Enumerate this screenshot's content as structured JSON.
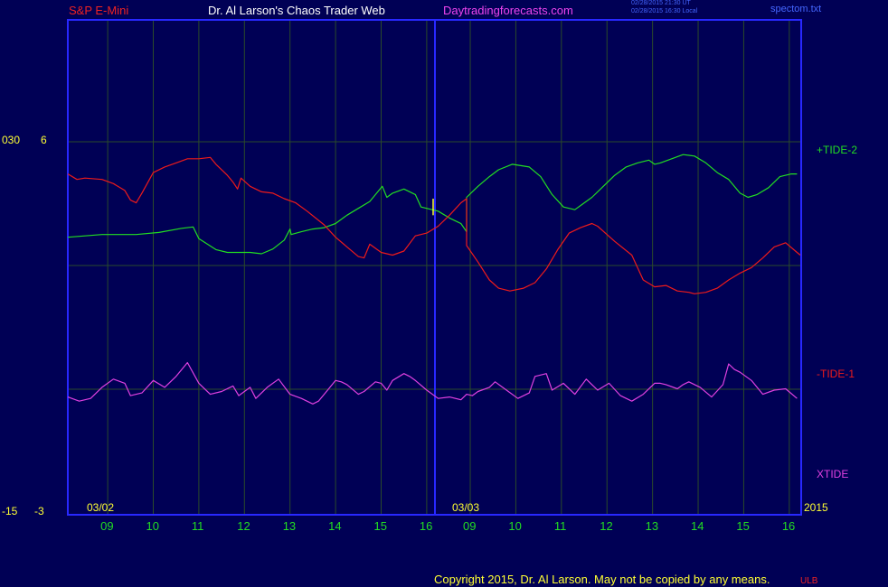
{
  "header": {
    "symbol": "S&P E-Mini",
    "author": "Dr. Al Larson's Chaos Trader Web",
    "site": "Daytradingforecasts.com",
    "timestamp1": "02/28/2015 21:30 UT",
    "timestamp2": "02/28/2015 16:30 Local",
    "file": "spectom.txt"
  },
  "footer": {
    "copyright": "Copyright 2015, Dr. Al Larson. May not be copied by any means.",
    "mark": "ULB"
  },
  "colors": {
    "background": "#000055",
    "frame": "#2828ff",
    "grid": "#2a4a2a",
    "green": "#22dd22",
    "red": "#ee1a1a",
    "magenta": "#e040e0",
    "yellow": "#ffff33",
    "header_red": "#ee2222",
    "header_white": "#ffffff",
    "header_magenta": "#ee44ee",
    "header_blue": "#4466ff"
  },
  "chart_data": {
    "type": "line",
    "x_ticks": [
      "09",
      "10",
      "11",
      "12",
      "13",
      "14",
      "15",
      "16",
      "09",
      "10",
      "11",
      "12",
      "13",
      "14",
      "15",
      "16"
    ],
    "day_labels": [
      "03/02",
      "03/03"
    ],
    "year_label": "2015",
    "y_left_outer": [
      "030",
      "-15"
    ],
    "y_left_inner": [
      "6",
      "-3"
    ],
    "series": [
      {
        "name": "+TIDE-2",
        "color": "#22dd22",
        "start": 3.5,
        "pts": [
          [
            0,
            -0.9
          ],
          [
            3,
            -0.7
          ],
          [
            6,
            -0.7
          ],
          [
            8,
            -0.55
          ],
          [
            10,
            -0.25
          ],
          [
            11,
            -0.15
          ],
          [
            11.5,
            -1.0
          ],
          [
            13,
            -1.8
          ],
          [
            14,
            -2.0
          ],
          [
            16,
            -2.0
          ],
          [
            17,
            -2.1
          ],
          [
            18,
            -1.75
          ],
          [
            19,
            -1.1
          ],
          [
            19.5,
            -0.3
          ],
          [
            19.6,
            -0.7
          ],
          [
            20.5,
            -0.5
          ],
          [
            21.5,
            -0.3
          ],
          [
            22.5,
            -0.2
          ],
          [
            23.5,
            0.1
          ],
          [
            24.5,
            0.7
          ],
          [
            25.5,
            1.2
          ],
          [
            26.5,
            1.7
          ],
          [
            27.6,
            2.8
          ],
          [
            28.0,
            2.0
          ],
          [
            28.5,
            2.3
          ],
          [
            29.5,
            2.6
          ],
          [
            30.5,
            2.2
          ],
          [
            31.0,
            1.3
          ],
          [
            32.5,
            1.0
          ],
          [
            33.5,
            0.5
          ],
          [
            34.5,
            0.1
          ],
          [
            35.0,
            -0.5
          ],
          [
            35.0,
            2.0
          ],
          [
            36.0,
            2.8
          ],
          [
            37.0,
            3.5
          ],
          [
            37.8,
            4.0
          ],
          [
            39.0,
            4.4
          ],
          [
            40.5,
            4.2
          ],
          [
            41.5,
            3.5
          ],
          [
            42.5,
            2.2
          ],
          [
            43.5,
            1.3
          ],
          [
            44.5,
            1.1
          ],
          [
            45.0,
            1.4
          ],
          [
            46.0,
            2.0
          ],
          [
            47.0,
            2.8
          ],
          [
            48.0,
            3.6
          ],
          [
            49.0,
            4.2
          ],
          [
            50.0,
            4.5
          ],
          [
            51.0,
            4.7
          ],
          [
            51.5,
            4.4
          ],
          [
            52.0,
            4.5
          ],
          [
            53.0,
            4.8
          ],
          [
            54.0,
            5.1
          ],
          [
            55.0,
            5.0
          ],
          [
            56.0,
            4.5
          ],
          [
            57.0,
            3.8
          ],
          [
            58.0,
            3.3
          ],
          [
            59.0,
            2.3
          ],
          [
            59.7,
            2.0
          ],
          [
            60.5,
            2.2
          ],
          [
            61.5,
            2.7
          ],
          [
            62.5,
            3.5
          ],
          [
            63.5,
            3.7
          ],
          [
            64.0,
            3.7
          ]
        ]
      },
      {
        "name": "-TIDE-1",
        "color": "#ee1a1a",
        "start": 3.5,
        "pts": [
          [
            0,
            3.7
          ],
          [
            0.8,
            3.3
          ],
          [
            1.5,
            3.4
          ],
          [
            3.0,
            3.3
          ],
          [
            4.0,
            3.0
          ],
          [
            5.0,
            2.5
          ],
          [
            5.5,
            1.8
          ],
          [
            6.0,
            1.6
          ],
          [
            6.5,
            2.3
          ],
          [
            7.5,
            3.8
          ],
          [
            8.5,
            4.2
          ],
          [
            9.5,
            4.5
          ],
          [
            10.5,
            4.8
          ],
          [
            11.5,
            4.8
          ],
          [
            12.5,
            4.9
          ],
          [
            13.0,
            4.4
          ],
          [
            14.0,
            3.6
          ],
          [
            14.5,
            3.1
          ],
          [
            14.9,
            2.6
          ],
          [
            15.2,
            3.4
          ],
          [
            16.0,
            2.8
          ],
          [
            17.0,
            2.4
          ],
          [
            18.0,
            2.3
          ],
          [
            19.0,
            1.9
          ],
          [
            20.0,
            1.6
          ],
          [
            21.0,
            1.0
          ],
          [
            22.5,
            0.0
          ],
          [
            23.5,
            -0.9
          ],
          [
            24.5,
            -1.6
          ],
          [
            25.5,
            -2.3
          ],
          [
            26.0,
            -2.4
          ],
          [
            26.5,
            -1.4
          ],
          [
            27.5,
            -2.0
          ],
          [
            28.5,
            -2.2
          ],
          [
            29.5,
            -1.9
          ],
          [
            30.5,
            -0.8
          ],
          [
            31.5,
            -0.6
          ],
          [
            32.5,
            -0.1
          ],
          [
            33.5,
            0.7
          ],
          [
            34.5,
            1.6
          ],
          [
            35.0,
            1.9
          ],
          [
            35.0,
            1.3
          ],
          [
            35.0,
            -1.5
          ],
          [
            36.0,
            -2.7
          ],
          [
            37.0,
            -4.0
          ],
          [
            37.8,
            -4.6
          ],
          [
            38.8,
            -4.8
          ],
          [
            40.0,
            -4.6
          ],
          [
            41.0,
            -4.2
          ],
          [
            42.0,
            -3.2
          ],
          [
            43.0,
            -1.8
          ],
          [
            44.0,
            -0.6
          ],
          [
            45.0,
            -0.2
          ],
          [
            46.0,
            0.1
          ],
          [
            46.5,
            -0.1
          ],
          [
            48.0,
            -1.2
          ],
          [
            49.5,
            -2.2
          ],
          [
            50.5,
            -4.0
          ],
          [
            51.5,
            -4.5
          ],
          [
            52.5,
            -4.4
          ],
          [
            53.5,
            -4.8
          ],
          [
            54.5,
            -4.9
          ],
          [
            55.0,
            -5.0
          ],
          [
            56.0,
            -4.9
          ],
          [
            57.0,
            -4.6
          ],
          [
            58.0,
            -4.0
          ],
          [
            59.0,
            -3.5
          ],
          [
            60.0,
            -3.1
          ],
          [
            61.0,
            -2.4
          ],
          [
            62.0,
            -1.6
          ],
          [
            63.0,
            -1.3
          ],
          [
            64.0,
            -2.0
          ],
          [
            65.0,
            -2.2
          ]
        ]
      },
      {
        "name": "XTIDE",
        "color": "#e040e0",
        "start": 3.5,
        "pts": [
          [
            0,
            -12.5
          ],
          [
            1,
            -12.8
          ],
          [
            2,
            -12.6
          ],
          [
            3,
            -11.8
          ],
          [
            4,
            -11.2
          ],
          [
            5,
            -11.5
          ],
          [
            5.5,
            -12.4
          ],
          [
            6.5,
            -12.2
          ],
          [
            7.5,
            -11.3
          ],
          [
            8.5,
            -11.8
          ],
          [
            9.5,
            -11.0
          ],
          [
            10.5,
            -10.0
          ],
          [
            11.5,
            -11.5
          ],
          [
            12.5,
            -12.3
          ],
          [
            13.5,
            -12.1
          ],
          [
            14.5,
            -11.7
          ],
          [
            15.0,
            -12.4
          ],
          [
            16.0,
            -11.8
          ],
          [
            16.5,
            -12.6
          ],
          [
            17.5,
            -11.8
          ],
          [
            18.5,
            -11.2
          ],
          [
            19.5,
            -12.3
          ],
          [
            20.5,
            -12.6
          ],
          [
            21.5,
            -13.0
          ],
          [
            22.0,
            -12.8
          ],
          [
            22.5,
            -12.3
          ],
          [
            23.5,
            -11.3
          ],
          [
            24.0,
            -11.4
          ],
          [
            24.5,
            -11.6
          ],
          [
            25.5,
            -12.3
          ],
          [
            26.0,
            -12.1
          ],
          [
            27.0,
            -11.4
          ],
          [
            27.5,
            -11.5
          ],
          [
            28.0,
            -12.0
          ],
          [
            28.5,
            -11.3
          ],
          [
            29.5,
            -10.8
          ],
          [
            30.0,
            -11.0
          ],
          [
            30.5,
            -11.3
          ],
          [
            31.5,
            -12.0
          ],
          [
            32.5,
            -12.6
          ],
          [
            33.5,
            -12.5
          ],
          [
            34.5,
            -12.7
          ],
          [
            35.0,
            -12.3
          ],
          [
            35.5,
            -12.4
          ],
          [
            36.0,
            -12.1
          ],
          [
            37.0,
            -11.8
          ],
          [
            37.5,
            -11.4
          ],
          [
            38.5,
            -12.0
          ],
          [
            39.5,
            -12.6
          ],
          [
            40.5,
            -12.2
          ],
          [
            41.0,
            -11.0
          ],
          [
            42.0,
            -10.8
          ],
          [
            42.5,
            -12.0
          ],
          [
            43.5,
            -11.5
          ],
          [
            44.5,
            -12.3
          ],
          [
            45.5,
            -11.2
          ],
          [
            46.0,
            -11.6
          ],
          [
            46.5,
            -12.0
          ],
          [
            47.5,
            -11.5
          ],
          [
            48.5,
            -12.4
          ],
          [
            49.5,
            -12.8
          ],
          [
            50.5,
            -12.3
          ],
          [
            51.5,
            -11.5
          ],
          [
            52.0,
            -11.5
          ],
          [
            52.5,
            -11.6
          ],
          [
            53.5,
            -11.9
          ],
          [
            54.0,
            -11.6
          ],
          [
            54.5,
            -11.4
          ],
          [
            55.5,
            -11.8
          ],
          [
            56.5,
            -12.5
          ],
          [
            57.5,
            -11.6
          ],
          [
            58.0,
            -10.1
          ],
          [
            58.5,
            -10.5
          ],
          [
            59.0,
            -10.7
          ],
          [
            60.0,
            -11.3
          ],
          [
            61.0,
            -12.3
          ],
          [
            62.0,
            -12.0
          ],
          [
            63.0,
            -11.9
          ],
          [
            64.0,
            -12.6
          ]
        ]
      }
    ],
    "marker": {
      "color": "#ffff33",
      "from": 1.9,
      "to": 0.7
    }
  }
}
